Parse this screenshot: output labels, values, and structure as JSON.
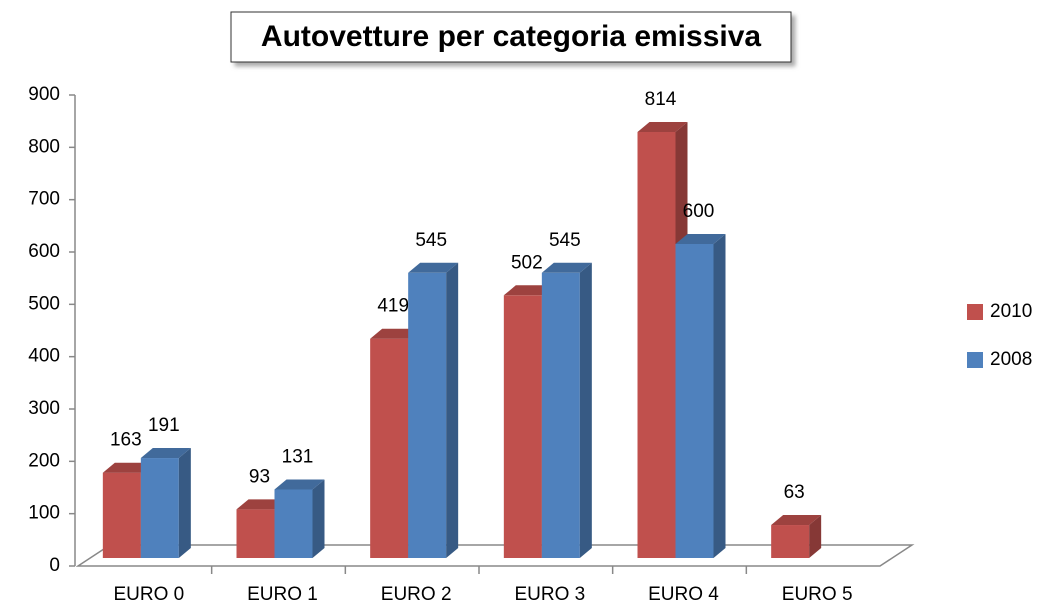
{
  "chart_data": {
    "type": "bar3d",
    "title": "Autovetture per categoria emissiva",
    "categories": [
      "EURO 0",
      "EURO 1",
      "EURO 2",
      "EURO 3",
      "EURO 4",
      "EURO 5"
    ],
    "series": [
      {
        "name": "2010",
        "color": "#c0504d",
        "values": [
          163,
          93,
          419,
          502,
          814,
          63
        ]
      },
      {
        "name": "2008",
        "color": "#4f81bd",
        "values": [
          191,
          131,
          545,
          545,
          600,
          null
        ]
      }
    ],
    "ylim": [
      0,
      900
    ],
    "yticks": [
      0,
      100,
      200,
      300,
      400,
      500,
      600,
      700,
      800,
      900
    ],
    "grid": false,
    "legend": "right"
  }
}
